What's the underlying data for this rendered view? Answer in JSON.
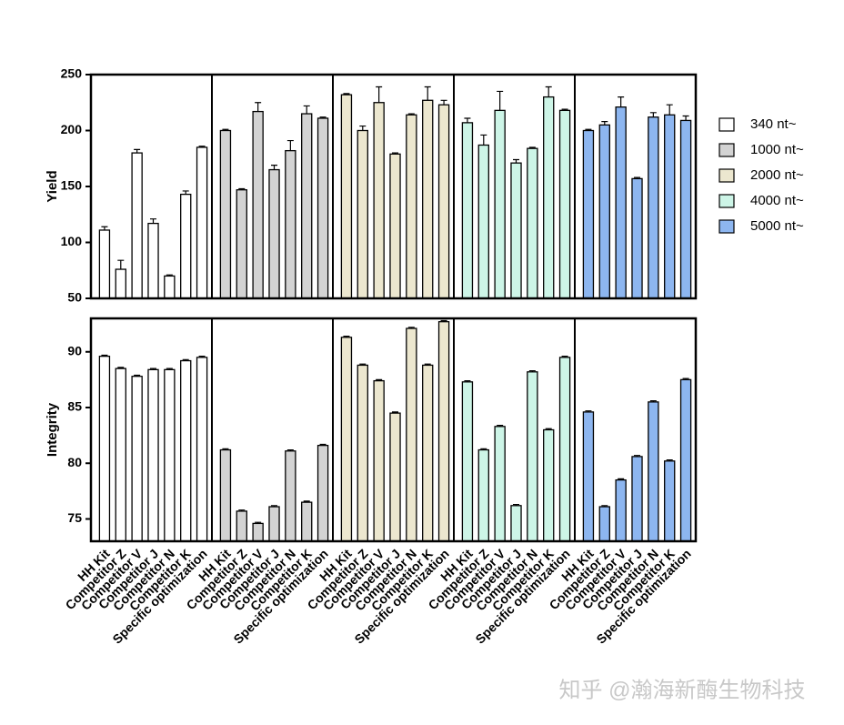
{
  "chart_data": [
    {
      "type": "bar",
      "ylabel": "Yield",
      "ylim": [
        50,
        250
      ],
      "yticks": [
        50,
        100,
        150,
        200,
        250
      ],
      "series": [
        {
          "name": "340 nt~",
          "color": "#ffffff",
          "values": [
            111,
            76,
            180,
            117,
            70,
            143,
            185
          ],
          "errors": [
            3,
            8,
            3,
            4,
            1,
            3,
            1
          ]
        },
        {
          "name": "1000 nt~",
          "color": "#d3d3d3",
          "values": [
            200,
            147,
            217,
            165,
            182,
            215,
            211
          ],
          "errors": [
            1,
            1,
            8,
            4,
            9,
            7,
            1
          ]
        },
        {
          "name": "2000 nt~",
          "color": "#ece7cf",
          "values": [
            232,
            200,
            225,
            179,
            214,
            227,
            223
          ],
          "errors": [
            1,
            4,
            14,
            1,
            1,
            12,
            4
          ]
        },
        {
          "name": "4000 nt~",
          "color": "#cdf5e7",
          "values": [
            207,
            187,
            218,
            171,
            184,
            230,
            218
          ],
          "errors": [
            4,
            9,
            17,
            3,
            1,
            9,
            1
          ]
        },
        {
          "name": "5000 nt~",
          "color": "#8db6f0",
          "values": [
            200,
            205,
            221,
            157,
            212,
            214,
            209
          ],
          "errors": [
            1,
            3,
            9,
            1,
            4,
            9,
            4
          ]
        }
      ]
    },
    {
      "type": "bar",
      "ylabel": "Integrity",
      "ylim": [
        73,
        93
      ],
      "yticks": [
        75,
        80,
        85,
        90
      ],
      "categories": [
        "HH Kit",
        "Competitor Z",
        "Competitor V",
        "Competitor J",
        "Competitor N",
        "Competitor K",
        "Specific optimization"
      ],
      "series": [
        {
          "color": "#ffffff",
          "values": [
            89.6,
            88.5,
            87.8,
            88.4,
            88.4,
            89.2,
            89.5
          ],
          "errors": [
            0.1,
            0.1,
            0.1,
            0.1,
            0.1,
            0.1,
            0.1
          ]
        },
        {
          "color": "#d3d3d3",
          "values": [
            81.2,
            75.7,
            74.6,
            76.1,
            81.1,
            76.5,
            81.6
          ],
          "errors": [
            0.1,
            0.1,
            0.1,
            0.1,
            0.1,
            0.1,
            0.1
          ]
        },
        {
          "color": "#ece7cf",
          "values": [
            91.3,
            88.8,
            87.4,
            84.5,
            92.1,
            88.8,
            92.7
          ],
          "errors": [
            0.1,
            0.1,
            0.1,
            0.1,
            0.1,
            0.1,
            0.1
          ]
        },
        {
          "color": "#cdf5e7",
          "values": [
            87.3,
            81.2,
            83.3,
            76.2,
            88.2,
            83.0,
            89.5
          ],
          "errors": [
            0.1,
            0.1,
            0.1,
            0.1,
            0.1,
            0.1,
            0.1
          ]
        },
        {
          "color": "#8db6f0",
          "values": [
            84.6,
            76.1,
            78.5,
            80.6,
            85.5,
            80.2,
            87.5
          ],
          "errors": [
            0.1,
            0.1,
            0.1,
            0.1,
            0.1,
            0.1,
            0.1
          ]
        }
      ]
    }
  ],
  "watermark": "知乎 @瀚海新酶生物科技"
}
